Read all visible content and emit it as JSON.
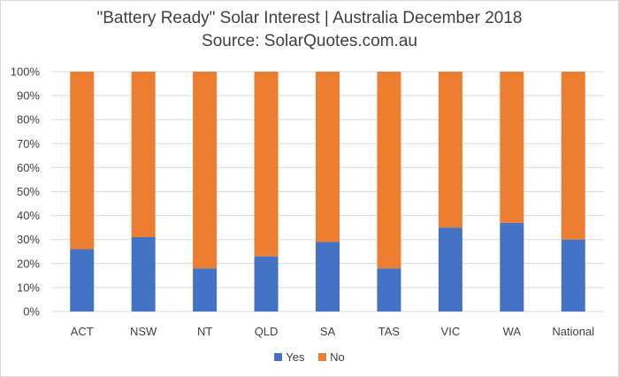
{
  "chart_data": {
    "type": "bar",
    "stacked": true,
    "title": "\"Battery Ready\" Solar Interest | Australia December 2018",
    "subtitle": "Source: SolarQuotes.com.au",
    "xlabel": "",
    "ylabel": "",
    "categories": [
      "ACT",
      "NSW",
      "NT",
      "QLD",
      "SA",
      "TAS",
      "VIC",
      "WA",
      "National"
    ],
    "series": [
      {
        "name": "Yes",
        "color": "#4472c4",
        "values": [
          26,
          31,
          18,
          23,
          29,
          18,
          35,
          37,
          30
        ]
      },
      {
        "name": "No",
        "color": "#ed7d31",
        "values": [
          74,
          69,
          82,
          77,
          71,
          82,
          65,
          63,
          70
        ]
      }
    ],
    "ylim": [
      0,
      100
    ],
    "yticks": [
      "0%",
      "10%",
      "20%",
      "30%",
      "40%",
      "50%",
      "60%",
      "70%",
      "80%",
      "90%",
      "100%"
    ],
    "grid": true,
    "legend_position": "bottom"
  }
}
